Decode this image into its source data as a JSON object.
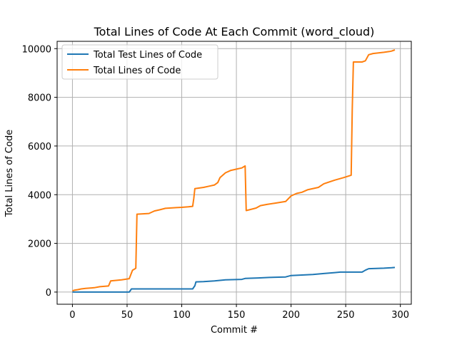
{
  "chart_data": {
    "type": "line",
    "title": "Total Lines of Code At Each Commit (word_cloud)",
    "xlabel": "Commit #",
    "ylabel": "Total Lines of Code",
    "xlim": [
      -14,
      310
    ],
    "ylim": [
      -500,
      10300
    ],
    "xticks": [
      0,
      50,
      100,
      150,
      200,
      250,
      300
    ],
    "yticks": [
      0,
      2000,
      4000,
      6000,
      8000,
      10000
    ],
    "grid": true,
    "legend_position": "top-left",
    "series": [
      {
        "name": "Total Test Lines of Code",
        "color": "#1f77b4",
        "points": [
          [
            0,
            0
          ],
          [
            52,
            0
          ],
          [
            54,
            130
          ],
          [
            110,
            130
          ],
          [
            112,
            260
          ],
          [
            113,
            420
          ],
          [
            120,
            430
          ],
          [
            130,
            460
          ],
          [
            140,
            500
          ],
          [
            155,
            520
          ],
          [
            158,
            560
          ],
          [
            170,
            580
          ],
          [
            180,
            600
          ],
          [
            195,
            620
          ],
          [
            200,
            680
          ],
          [
            210,
            700
          ],
          [
            220,
            720
          ],
          [
            230,
            760
          ],
          [
            240,
            800
          ],
          [
            245,
            820
          ],
          [
            265,
            820
          ],
          [
            268,
            900
          ],
          [
            271,
            960
          ],
          [
            285,
            980
          ],
          [
            292,
            1000
          ],
          [
            295,
            1010
          ]
        ]
      },
      {
        "name": "Total Lines of Code",
        "color": "#ff7f0e",
        "points": [
          [
            0,
            50
          ],
          [
            2,
            80
          ],
          [
            5,
            100
          ],
          [
            8,
            130
          ],
          [
            12,
            150
          ],
          [
            20,
            180
          ],
          [
            25,
            220
          ],
          [
            33,
            250
          ],
          [
            35,
            460
          ],
          [
            40,
            480
          ],
          [
            45,
            500
          ],
          [
            52,
            550
          ],
          [
            55,
            900
          ],
          [
            57,
            950
          ],
          [
            58,
            980
          ],
          [
            59,
            3200
          ],
          [
            70,
            3230
          ],
          [
            75,
            3330
          ],
          [
            80,
            3380
          ],
          [
            85,
            3440
          ],
          [
            95,
            3470
          ],
          [
            100,
            3480
          ],
          [
            106,
            3500
          ],
          [
            110,
            3520
          ],
          [
            111,
            3850
          ],
          [
            112,
            4250
          ],
          [
            120,
            4300
          ],
          [
            125,
            4350
          ],
          [
            130,
            4400
          ],
          [
            133,
            4500
          ],
          [
            135,
            4700
          ],
          [
            140,
            4900
          ],
          [
            145,
            5000
          ],
          [
            150,
            5050
          ],
          [
            155,
            5100
          ],
          [
            158,
            5180
          ],
          [
            159,
            3350
          ],
          [
            162,
            3380
          ],
          [
            168,
            3450
          ],
          [
            172,
            3550
          ],
          [
            178,
            3600
          ],
          [
            185,
            3650
          ],
          [
            195,
            3720
          ],
          [
            200,
            3950
          ],
          [
            205,
            4050
          ],
          [
            210,
            4100
          ],
          [
            215,
            4200
          ],
          [
            225,
            4300
          ],
          [
            230,
            4450
          ],
          [
            240,
            4600
          ],
          [
            248,
            4700
          ],
          [
            255,
            4800
          ],
          [
            256,
            7500
          ],
          [
            257,
            9450
          ],
          [
            265,
            9450
          ],
          [
            268,
            9500
          ],
          [
            271,
            9750
          ],
          [
            275,
            9800
          ],
          [
            285,
            9850
          ],
          [
            290,
            9880
          ],
          [
            292,
            9900
          ],
          [
            295,
            9950
          ]
        ]
      }
    ]
  }
}
